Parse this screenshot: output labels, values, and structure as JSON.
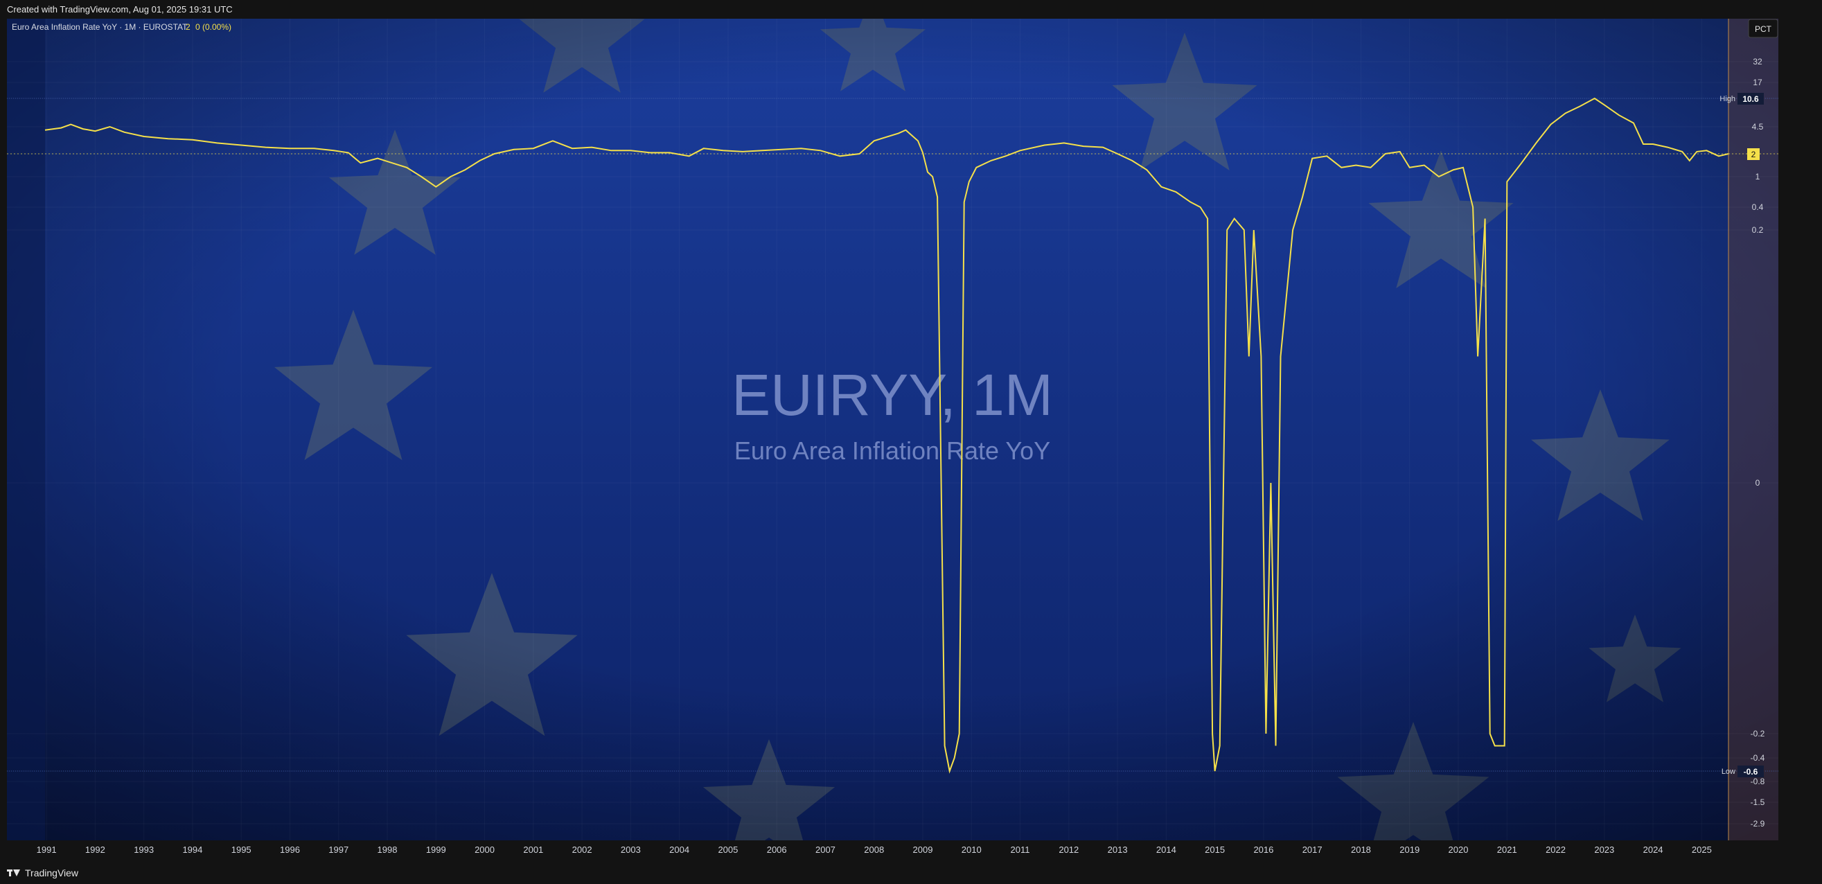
{
  "header": {
    "credit": "Created with TradingView.com, Aug 01, 2025 19:31 UTC"
  },
  "footer": {
    "brand": "TradingView"
  },
  "legend": {
    "series": "Euro Area Inflation Rate YoY · 1M · EUROSTAT",
    "last_value": "2",
    "change": "0 (0.00%)"
  },
  "watermark": {
    "symbol": "EUIRYY, 1M",
    "description": "Euro Area Inflation Rate YoY"
  },
  "axis": {
    "scale_label": "PCT",
    "high_label": "High",
    "high_value": "10.6",
    "low_label": "Low",
    "low_value": "-0.6",
    "current_value": "2"
  },
  "colors": {
    "line": "#f5e04a",
    "background_top": "#1b3d9c",
    "background_bottom": "#0d2266",
    "star": "#5b6a6e"
  },
  "chart_data": {
    "type": "line",
    "title": "Euro Area Inflation Rate YoY",
    "xlabel": "",
    "ylabel": "",
    "y_scale": "log-like (PCT)",
    "y_ticks": [
      32,
      17,
      10.6,
      4.5,
      2,
      1,
      0.4,
      0.2,
      0,
      -0.2,
      -0.4,
      -0.6,
      -0.8,
      -1.5,
      -2.9
    ],
    "x_ticks": [
      "1991",
      "1992",
      "1993",
      "1994",
      "1995",
      "1996",
      "1997",
      "1998",
      "1999",
      "2000",
      "2001",
      "2002",
      "2003",
      "2004",
      "2005",
      "2006",
      "2007",
      "2008",
      "2009",
      "2010",
      "2011",
      "2012",
      "2013",
      "2014",
      "2015",
      "2016",
      "2017",
      "2018",
      "2019",
      "2020",
      "2021",
      "2022",
      "2023",
      "2024",
      "2025"
    ],
    "x_range": [
      1990.97,
      2025.55
    ],
    "series": [
      {
        "values_xy": [
          [
            1990.97,
            4.2
          ],
          [
            1991.3,
            4.4
          ],
          [
            1991.5,
            5.0
          ],
          [
            1991.75,
            4.3
          ],
          [
            1992.0,
            4.1
          ],
          [
            1992.3,
            4.5
          ],
          [
            1992.6,
            4.0
          ],
          [
            1993.0,
            3.6
          ],
          [
            1993.5,
            3.4
          ],
          [
            1994.0,
            3.3
          ],
          [
            1994.5,
            3.0
          ],
          [
            1995.0,
            2.8
          ],
          [
            1995.5,
            2.6
          ],
          [
            1996.0,
            2.5
          ],
          [
            1996.5,
            2.5
          ],
          [
            1996.9,
            2.3
          ],
          [
            1997.2,
            2.1
          ],
          [
            1997.45,
            1.6
          ],
          [
            1997.8,
            1.8
          ],
          [
            1998.1,
            1.6
          ],
          [
            1998.4,
            1.4
          ],
          [
            1998.7,
            1.0
          ],
          [
            1999.0,
            0.8
          ],
          [
            1999.3,
            1.0
          ],
          [
            1999.6,
            1.3
          ],
          [
            1999.9,
            1.7
          ],
          [
            2000.2,
            2.0
          ],
          [
            2000.6,
            2.4
          ],
          [
            2001.0,
            2.5
          ],
          [
            2001.4,
            3.2
          ],
          [
            2001.8,
            2.5
          ],
          [
            2002.2,
            2.6
          ],
          [
            2002.6,
            2.3
          ],
          [
            2003.0,
            2.3
          ],
          [
            2003.4,
            2.1
          ],
          [
            2003.8,
            2.1
          ],
          [
            2004.2,
            1.9
          ],
          [
            2004.5,
            2.5
          ],
          [
            2004.9,
            2.3
          ],
          [
            2005.3,
            2.2
          ],
          [
            2005.7,
            2.3
          ],
          [
            2006.1,
            2.4
          ],
          [
            2006.5,
            2.5
          ],
          [
            2006.9,
            2.3
          ],
          [
            2007.3,
            1.9
          ],
          [
            2007.7,
            2.0
          ],
          [
            2008.0,
            3.2
          ],
          [
            2008.5,
            3.9
          ],
          [
            2008.65,
            4.2
          ],
          [
            2008.9,
            3.2
          ],
          [
            2009.0,
            2.1
          ],
          [
            2009.1,
            1.2
          ],
          [
            2009.2,
            1.0
          ],
          [
            2009.3,
            0.6
          ],
          [
            2009.45,
            -0.3
          ],
          [
            2009.55,
            -0.6
          ],
          [
            2009.65,
            -0.4
          ],
          [
            2009.75,
            -0.2
          ],
          [
            2009.85,
            0.5
          ],
          [
            2009.95,
            0.9
          ],
          [
            2010.1,
            1.4
          ],
          [
            2010.4,
            1.7
          ],
          [
            2010.7,
            1.9
          ],
          [
            2011.0,
            2.3
          ],
          [
            2011.5,
            2.8
          ],
          [
            2011.9,
            3.0
          ],
          [
            2012.3,
            2.7
          ],
          [
            2012.7,
            2.6
          ],
          [
            2013.0,
            2.0
          ],
          [
            2013.3,
            1.7
          ],
          [
            2013.6,
            1.3
          ],
          [
            2013.9,
            0.8
          ],
          [
            2014.2,
            0.7
          ],
          [
            2014.5,
            0.5
          ],
          [
            2014.7,
            0.4
          ],
          [
            2014.85,
            0.3
          ],
          [
            2014.95,
            -0.2
          ],
          [
            2015.0,
            -0.6
          ],
          [
            2015.1,
            -0.3
          ],
          [
            2015.25,
            0.2
          ],
          [
            2015.4,
            0.3
          ],
          [
            2015.6,
            0.2
          ],
          [
            2015.7,
            0.1
          ],
          [
            2015.8,
            0.2
          ],
          [
            2015.95,
            0.1
          ],
          [
            2016.05,
            -0.2
          ],
          [
            2016.15,
            0.0
          ],
          [
            2016.25,
            -0.3
          ],
          [
            2016.35,
            0.1
          ],
          [
            2016.6,
            0.2
          ],
          [
            2016.8,
            0.6
          ],
          [
            2017.0,
            1.8
          ],
          [
            2017.3,
            1.9
          ],
          [
            2017.6,
            1.4
          ],
          [
            2017.9,
            1.5
          ],
          [
            2018.2,
            1.4
          ],
          [
            2018.5,
            2.0
          ],
          [
            2018.8,
            2.2
          ],
          [
            2019.0,
            1.4
          ],
          [
            2019.3,
            1.5
          ],
          [
            2019.6,
            1.0
          ],
          [
            2019.9,
            1.3
          ],
          [
            2020.1,
            1.4
          ],
          [
            2020.3,
            0.4
          ],
          [
            2020.4,
            0.1
          ],
          [
            2020.55,
            0.3
          ],
          [
            2020.65,
            -0.2
          ],
          [
            2020.75,
            -0.3
          ],
          [
            2020.95,
            -0.3
          ],
          [
            2021.0,
            0.9
          ],
          [
            2021.3,
            1.6
          ],
          [
            2021.6,
            3.0
          ],
          [
            2021.9,
            5.0
          ],
          [
            2022.2,
            7.4
          ],
          [
            2022.5,
            8.9
          ],
          [
            2022.8,
            10.6
          ],
          [
            2023.0,
            9.2
          ],
          [
            2023.3,
            7.0
          ],
          [
            2023.6,
            5.3
          ],
          [
            2023.8,
            2.9
          ],
          [
            2024.0,
            2.9
          ],
          [
            2024.3,
            2.6
          ],
          [
            2024.6,
            2.2
          ],
          [
            2024.75,
            1.7
          ],
          [
            2024.9,
            2.2
          ],
          [
            2025.1,
            2.3
          ],
          [
            2025.35,
            1.9
          ],
          [
            2025.55,
            2.0
          ]
        ]
      }
    ]
  }
}
